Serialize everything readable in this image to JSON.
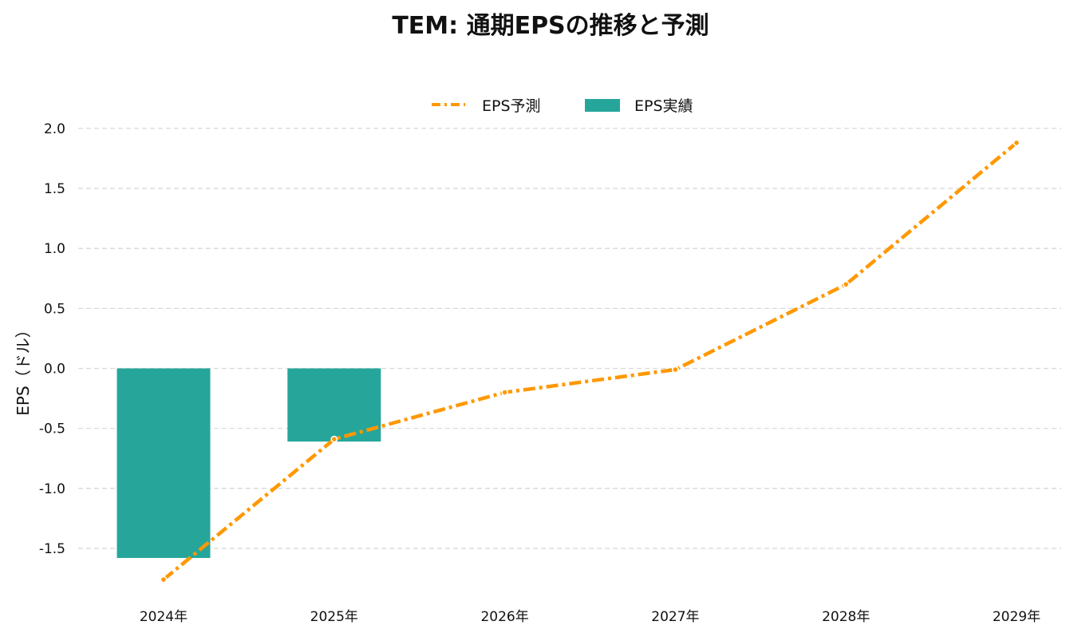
{
  "chart_data": {
    "type": "bar",
    "title": "TEM: 通期EPSの推移と予測",
    "xlabel": "",
    "ylabel": "EPS（ドル）",
    "categories": [
      "2024年",
      "2025年",
      "2026年",
      "2027年",
      "2028年",
      "2029年"
    ],
    "yticks": [
      "-1.5",
      "-1.0",
      "-0.5",
      "0.0",
      "0.5",
      "1.0",
      "1.5",
      "2.0"
    ],
    "ylim": [
      -1.8,
      2.1
    ],
    "grid": true,
    "legend_position": "top-center",
    "series": [
      {
        "name": "EPS実績",
        "type": "bar",
        "color": "#26a69a",
        "values": [
          -1.58,
          -0.61,
          null,
          null,
          null,
          null
        ]
      },
      {
        "name": "EPS予測",
        "type": "line",
        "style": "dash-dot",
        "color": "#ff9800",
        "values": [
          -1.76,
          -0.59,
          -0.2,
          -0.01,
          0.7,
          1.88
        ]
      }
    ]
  }
}
